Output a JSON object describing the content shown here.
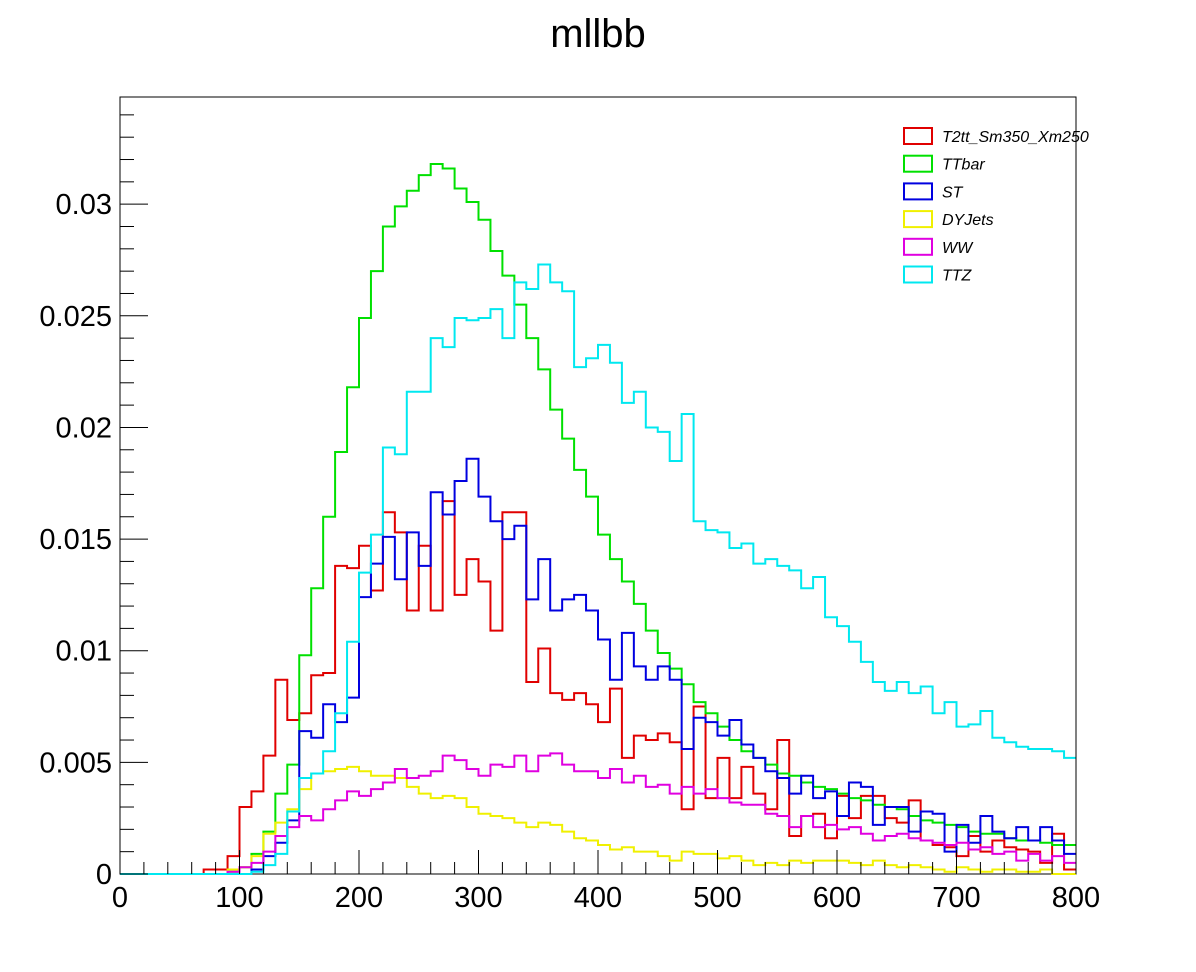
{
  "chart_data": {
    "type": "line",
    "style": "step-histogram",
    "title": "mllbb",
    "xlabel": "",
    "ylabel": "",
    "xlim": [
      0,
      800
    ],
    "ylim": [
      0,
      0.0348
    ],
    "bin_width": 10,
    "x_ticks": [
      0,
      100,
      200,
      300,
      400,
      500,
      600,
      700,
      800
    ],
    "x_tick_labels": [
      "0",
      "100",
      "200",
      "300",
      "400",
      "500",
      "600",
      "700",
      "800"
    ],
    "y_ticks": [
      0,
      0.005,
      0.01,
      0.015,
      0.02,
      0.025,
      0.03
    ],
    "y_tick_labels": [
      "0",
      "0.005",
      "0.01",
      "0.015",
      "0.02",
      "0.025",
      "0.03"
    ],
    "legend": {
      "placement": "top-right"
    },
    "series": [
      {
        "name": "T2tt_Sm350_Xm250",
        "color": "#e00000",
        "values": [
          0,
          0,
          0,
          0,
          0,
          0,
          0,
          0.0002,
          0.0002,
          0.0008,
          0.003,
          0.0037,
          0.0053,
          0.0087,
          0.0069,
          0.0072,
          0.0089,
          0.009,
          0.0138,
          0.0137,
          0.0147,
          0.0127,
          0.0162,
          0.0153,
          0.0118,
          0.0147,
          0.0118,
          0.0167,
          0.0125,
          0.0141,
          0.0131,
          0.0109,
          0.0162,
          0.0162,
          0.0086,
          0.0101,
          0.0081,
          0.0078,
          0.0081,
          0.0076,
          0.0068,
          0.0083,
          0.0052,
          0.0062,
          0.006,
          0.0063,
          0.0059,
          0.0029,
          0.0075,
          0.0034,
          0.0052,
          0.0034,
          0.0048,
          0.0036,
          0.0029,
          0.006,
          0.0017,
          0.0026,
          0.0027,
          0.0016,
          0.0035,
          0.0025,
          0.0035,
          0.0035,
          0.0025,
          0.0023,
          0.0033,
          0.0015,
          0.0013,
          0.0012,
          0.0008,
          0.0017,
          0.001,
          0.0015,
          0.0012,
          0.0011,
          0.001,
          0.0005,
          0.0018,
          0.0002
        ]
      },
      {
        "name": "TTbar",
        "color": "#00e000",
        "values": [
          0,
          0,
          0,
          0,
          0,
          0,
          0,
          0,
          0,
          0.0001,
          0.0003,
          0.0009,
          0.0019,
          0.0036,
          0.0049,
          0.0098,
          0.0128,
          0.016,
          0.0189,
          0.0218,
          0.0249,
          0.027,
          0.029,
          0.0299,
          0.0306,
          0.0313,
          0.0318,
          0.0316,
          0.0307,
          0.0301,
          0.0293,
          0.0279,
          0.0268,
          0.0255,
          0.024,
          0.0226,
          0.0208,
          0.0195,
          0.0181,
          0.0169,
          0.0152,
          0.0141,
          0.0131,
          0.0121,
          0.0109,
          0.0099,
          0.0092,
          0.0085,
          0.0077,
          0.0072,
          0.0066,
          0.006,
          0.0055,
          0.0052,
          0.0049,
          0.0045,
          0.0044,
          0.0041,
          0.0039,
          0.0038,
          0.0036,
          0.0034,
          0.0033,
          0.0031,
          0.003,
          0.0029,
          0.0026,
          0.0024,
          0.0023,
          0.0022,
          0.0021,
          0.0019,
          0.0018,
          0.0018,
          0.0016,
          0.0015,
          0.0015,
          0.0014,
          0.0013,
          0.0013
        ]
      },
      {
        "name": "ST",
        "color": "#0000e0",
        "values": [
          0,
          0,
          0,
          0,
          0,
          0,
          0,
          0,
          0,
          0,
          0,
          0.0002,
          0.0008,
          0.0014,
          0.0024,
          0.0064,
          0.0061,
          0.0076,
          0.0068,
          0.0079,
          0.0124,
          0.0139,
          0.0151,
          0.0132,
          0.0153,
          0.0138,
          0.0171,
          0.0161,
          0.0176,
          0.0186,
          0.0169,
          0.0158,
          0.015,
          0.0156,
          0.0123,
          0.0141,
          0.0118,
          0.0123,
          0.0125,
          0.0118,
          0.0105,
          0.0087,
          0.0108,
          0.0093,
          0.0087,
          0.0093,
          0.0087,
          0.0056,
          0.007,
          0.0068,
          0.0062,
          0.0069,
          0.0058,
          0.0052,
          0.0046,
          0.0043,
          0.0036,
          0.0044,
          0.0034,
          0.0037,
          0.0026,
          0.0041,
          0.0039,
          0.0022,
          0.003,
          0.003,
          0.0019,
          0.0028,
          0.0027,
          0.001,
          0.0022,
          0.0014,
          0.0026,
          0.0019,
          0.0016,
          0.0021,
          0.0015,
          0.0021,
          0.0015,
          0.0009
        ]
      },
      {
        "name": "DYJets",
        "color": "#f0f000",
        "values": [
          0,
          0,
          0,
          0,
          0,
          0,
          0,
          0,
          0,
          0.0002,
          0.0003,
          0.0008,
          0.0018,
          0.0023,
          0.0029,
          0.0038,
          0.0045,
          0.0046,
          0.0047,
          0.0048,
          0.0046,
          0.0044,
          0.0044,
          0.0043,
          0.0039,
          0.0036,
          0.0034,
          0.0035,
          0.0034,
          0.003,
          0.0027,
          0.0026,
          0.0025,
          0.0023,
          0.0021,
          0.0023,
          0.0022,
          0.0019,
          0.0016,
          0.0015,
          0.0013,
          0.0011,
          0.0012,
          0.001,
          0.001,
          0.0008,
          0.0006,
          0.001,
          0.0009,
          0.0009,
          0.0007,
          0.0008,
          0.0006,
          0.0004,
          0.0005,
          0.0004,
          0.0006,
          0.0005,
          0.0006,
          0.0006,
          0.0006,
          0.0005,
          0.0004,
          0.0006,
          0.0004,
          0.0003,
          0.0004,
          0.0003,
          0.0002,
          0.0001,
          0.0003,
          0.0002,
          0.0001,
          0.0002,
          0.0002,
          0.0001,
          0.0001,
          0.0002,
          0,
          0
        ]
      },
      {
        "name": "WW",
        "color": "#e000e0",
        "values": [
          0,
          0,
          0,
          0,
          0,
          0,
          0,
          0,
          0,
          0.0001,
          0.0003,
          0.0005,
          0.001,
          0.0017,
          0.0021,
          0.0026,
          0.0024,
          0.0029,
          0.0033,
          0.0037,
          0.0035,
          0.0038,
          0.0041,
          0.0047,
          0.0043,
          0.0044,
          0.0046,
          0.0053,
          0.0051,
          0.0047,
          0.0044,
          0.0049,
          0.0048,
          0.0053,
          0.0046,
          0.0053,
          0.0054,
          0.0049,
          0.0046,
          0.0046,
          0.0043,
          0.0047,
          0.0041,
          0.0044,
          0.0039,
          0.004,
          0.0036,
          0.0039,
          0.0036,
          0.0038,
          0.0034,
          0.0032,
          0.0031,
          0.0031,
          0.0027,
          0.0026,
          0.0021,
          0.0026,
          0.0021,
          0.0022,
          0.002,
          0.0021,
          0.0018,
          0.0015,
          0.0017,
          0.0018,
          0.0016,
          0.0015,
          0.0014,
          0.0013,
          0.0014,
          0.0011,
          0.0012,
          0.0009,
          0.001,
          0.0006,
          0.0009,
          0.0006,
          0.0008,
          0.0005
        ]
      },
      {
        "name": "TTZ",
        "color": "#00e8f0",
        "values": [
          0,
          0,
          0,
          0,
          0,
          0,
          0,
          0,
          0,
          0,
          0,
          0.0001,
          0.0004,
          0.0009,
          0.0028,
          0.0043,
          0.0045,
          0.0055,
          0.0072,
          0.0104,
          0.0135,
          0.0152,
          0.0191,
          0.0188,
          0.0216,
          0.0216,
          0.024,
          0.0236,
          0.0249,
          0.0248,
          0.0249,
          0.0253,
          0.024,
          0.0265,
          0.0262,
          0.0273,
          0.0265,
          0.0261,
          0.0227,
          0.0231,
          0.0237,
          0.0229,
          0.0211,
          0.0216,
          0.02,
          0.0198,
          0.0185,
          0.0206,
          0.0158,
          0.0154,
          0.0153,
          0.0146,
          0.0148,
          0.0139,
          0.0141,
          0.0138,
          0.0136,
          0.0128,
          0.0133,
          0.0115,
          0.0111,
          0.0104,
          0.0095,
          0.0086,
          0.0082,
          0.0086,
          0.0081,
          0.0084,
          0.0072,
          0.0077,
          0.0066,
          0.0067,
          0.0073,
          0.0061,
          0.0059,
          0.0057,
          0.0056,
          0.0056,
          0.0055,
          0.0052
        ]
      }
    ]
  }
}
